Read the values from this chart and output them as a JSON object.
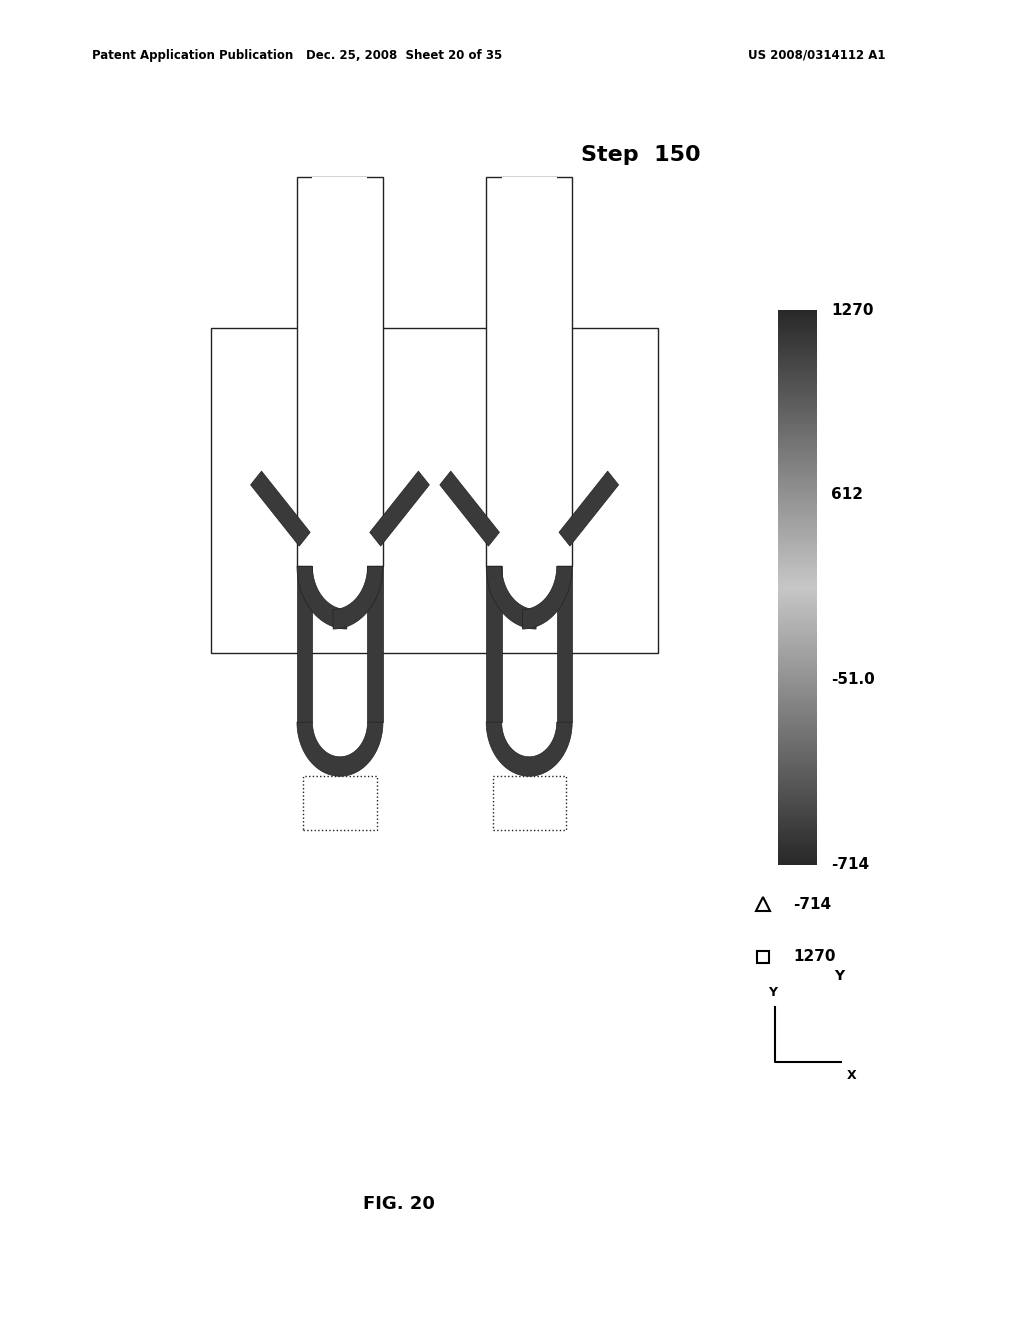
{
  "fig_width": 10.24,
  "fig_height": 13.2,
  "dpi": 100,
  "header_left": "Patent Application Publication",
  "header_center": "Dec. 25, 2008  Sheet 20 of 35",
  "header_right": "US 2008/0314112 A1",
  "title_text": "Step  150",
  "fig_label": "FIG. 20",
  "colorbar_ticks": [
    1270,
    612,
    -51.0,
    -714
  ],
  "colorbar_tick_labels": [
    "1270",
    "612",
    "-51.0",
    "-714"
  ],
  "legend_triangle_val": "-714",
  "legend_square_val": "1270",
  "bg_gray": "#d4d4d4",
  "panel_bg": "#d4d4d4",
  "wall_color": "#3a3a3a",
  "line_color": "#222222"
}
